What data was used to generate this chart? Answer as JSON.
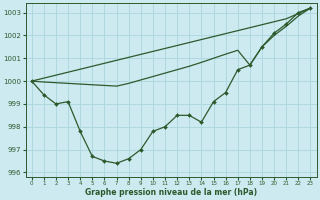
{
  "xlabel": "Graphe pression niveau de la mer (hPa)",
  "bg_color": "#cdeaf0",
  "grid_color": "#b0d8e0",
  "line_color": "#2d5a2d",
  "x_ticks": [
    0,
    1,
    2,
    3,
    4,
    5,
    6,
    7,
    8,
    9,
    10,
    11,
    12,
    13,
    14,
    15,
    16,
    17,
    18,
    19,
    20,
    21,
    22,
    23
  ],
  "ylim": [
    995.8,
    1003.4
  ],
  "y_ticks": [
    996,
    997,
    998,
    999,
    1000,
    1001,
    1002,
    1003
  ],
  "series1": [
    1000.0,
    999.4,
    999.0,
    999.1,
    997.8,
    996.7,
    996.5,
    996.4,
    996.6,
    997.0,
    997.8,
    998.0,
    998.5,
    998.5,
    998.2,
    999.1,
    999.5,
    1000.5,
    1000.7,
    1001.5,
    1002.1,
    1002.5,
    1003.0,
    1003.2
  ],
  "series2": [
    1000.0,
    1000.13,
    1000.26,
    1000.39,
    1000.52,
    1000.65,
    1000.78,
    1000.91,
    1001.04,
    1001.17,
    1001.3,
    1001.43,
    1001.56,
    1001.69,
    1001.82,
    1001.95,
    1002.08,
    1002.21,
    1002.34,
    1002.47,
    1002.6,
    1002.73,
    1002.96,
    1003.2
  ],
  "series3": [
    1000.0,
    999.96,
    999.93,
    999.9,
    999.87,
    999.84,
    999.81,
    999.78,
    999.9,
    1000.05,
    1000.2,
    1000.35,
    1000.5,
    1000.65,
    1000.82,
    1001.0,
    1001.18,
    1001.35,
    1000.7,
    1001.5,
    1002.0,
    1002.4,
    1002.85,
    1003.2
  ]
}
